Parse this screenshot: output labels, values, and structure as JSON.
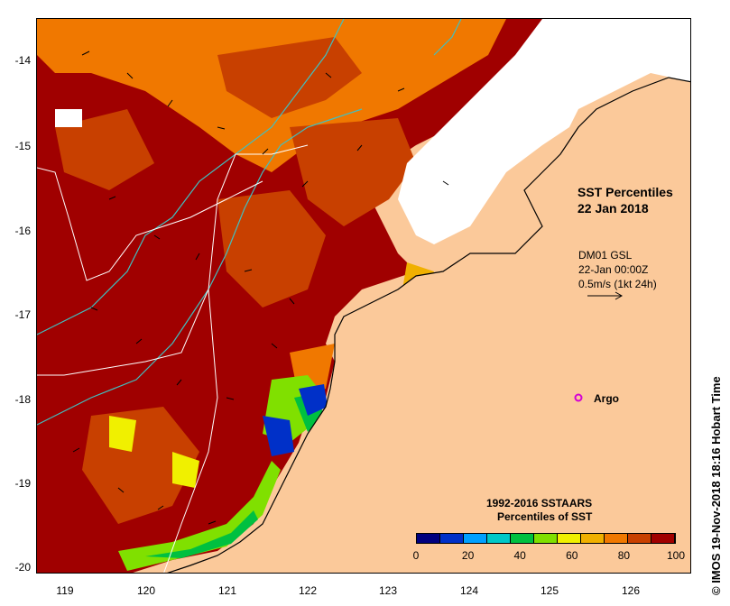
{
  "title": {
    "line1": "SST Percentiles",
    "line2": "22 Jan 2018"
  },
  "current_info": {
    "source": "DM01 GSL",
    "time": "22-Jan 00:00Z",
    "scale": "0.5m/s (1kt 24h)"
  },
  "argo": {
    "label": "Argo",
    "color": "#d400d4"
  },
  "legend": {
    "title1": "1992-2016 SSTAARS",
    "title2": "Percentiles of SST",
    "colors": [
      "#00007f",
      "#0030c8",
      "#00a0ff",
      "#00c8c8",
      "#00c040",
      "#80e000",
      "#f0f000",
      "#f0b000",
      "#f07800",
      "#c84000",
      "#a00000"
    ],
    "ticks": [
      "0",
      "20",
      "40",
      "60",
      "80",
      "100"
    ]
  },
  "axes": {
    "y_ticks": [
      "-14",
      "-15",
      "-16",
      "-17",
      "-18",
      "-19",
      "-20"
    ],
    "x_ticks": [
      "119",
      "120",
      "121",
      "122",
      "123",
      "124",
      "125",
      "126"
    ]
  },
  "credit": "© IMOS 19-Nov-2018 18:16 Hobart Time",
  "colors": {
    "land": "#fbc99a",
    "sea_hot": "#a00000",
    "sea_warm": "#c84000",
    "sea_orange": "#f07800",
    "cloud": "#ffffff",
    "bathy": "#40c0c0"
  }
}
